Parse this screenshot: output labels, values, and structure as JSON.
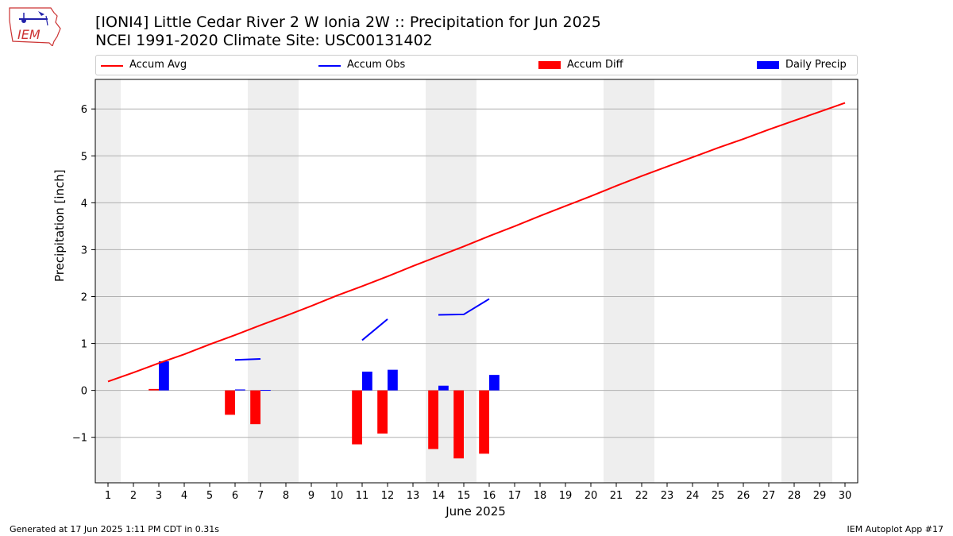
{
  "logo": {
    "text": "IEM"
  },
  "title_line1": "[IONI4] Little Cedar River 2 W Ionia 2W :: Precipitation for Jun 2025",
  "title_line2": "NCEI 1991-2020 Climate Site: USC00131402",
  "legend": {
    "accum_avg": "Accum Avg",
    "accum_obs": "Accum Obs",
    "accum_diff": "Accum Diff",
    "daily_precip": "Daily Precip"
  },
  "footer": {
    "generated": "Generated at 17 Jun 2025 1:11 PM CDT in 0.31s",
    "app": "IEM Autoplot App #17"
  },
  "chart_data": {
    "type": "bar",
    "xlabel": "June 2025",
    "ylabel": "Precipitation [inch]",
    "xlim": [
      0.5,
      30.5
    ],
    "ylim": [
      -1.97,
      6.63
    ],
    "x_ticks": [
      1,
      2,
      3,
      4,
      5,
      6,
      7,
      8,
      9,
      10,
      11,
      12,
      13,
      14,
      15,
      16,
      17,
      18,
      19,
      20,
      21,
      22,
      23,
      24,
      25,
      26,
      27,
      28,
      29,
      30
    ],
    "y_ticks": [
      -1,
      0,
      1,
      2,
      3,
      4,
      5,
      6
    ],
    "y_tick_labels": [
      "−1",
      "0",
      "1",
      "2",
      "3",
      "4",
      "5",
      "6"
    ],
    "grid": "horizontal",
    "legend_placement": "top",
    "weekend_shading_days": [
      [
        0.5,
        1.5
      ],
      [
        6.5,
        8.5
      ],
      [
        13.5,
        15.5
      ],
      [
        20.5,
        22.5
      ],
      [
        27.5,
        29.5
      ]
    ],
    "colors": {
      "accum_avg": "#ff0000",
      "accum_obs": "#0000ff",
      "accum_diff": "#ff0000",
      "daily_precip": "#0000ff",
      "weekend": "#eeeeee",
      "grid": "#b0b0b0"
    },
    "series": [
      {
        "name": "Accum Avg",
        "type": "line",
        "x": [
          1,
          2,
          3,
          4,
          5,
          6,
          7,
          8,
          9,
          10,
          11,
          12,
          13,
          14,
          15,
          16,
          17,
          18,
          19,
          20,
          21,
          22,
          23,
          24,
          25,
          26,
          27,
          28,
          29,
          30
        ],
        "values": [
          0.19,
          0.38,
          0.58,
          0.77,
          0.98,
          1.18,
          1.39,
          1.59,
          1.8,
          2.02,
          2.22,
          2.43,
          2.65,
          2.86,
          3.07,
          3.29,
          3.5,
          3.72,
          3.93,
          4.14,
          4.36,
          4.57,
          4.77,
          4.97,
          5.17,
          5.36,
          5.56,
          5.75,
          5.94,
          6.13
        ]
      },
      {
        "name": "Accum Obs",
        "type": "line",
        "segments": [
          {
            "x": [
              6,
              7
            ],
            "values": [
              0.65,
              0.67
            ]
          },
          {
            "x": [
              11,
              12
            ],
            "values": [
              1.07,
              1.52
            ]
          },
          {
            "x": [
              14,
              15,
              16
            ],
            "values": [
              1.61,
              1.62,
              1.95
            ]
          }
        ]
      },
      {
        "name": "Accum Diff",
        "type": "bar",
        "x": [
          3,
          6,
          7,
          11,
          12,
          14,
          15,
          16
        ],
        "values": [
          0.03,
          -0.52,
          -0.72,
          -1.15,
          -0.92,
          -1.25,
          -1.45,
          -1.35
        ]
      },
      {
        "name": "Daily Precip",
        "type": "bar",
        "x": [
          3,
          6,
          7,
          11,
          12,
          14,
          16
        ],
        "values": [
          0.62,
          0.02,
          0.01,
          0.4,
          0.44,
          0.1,
          0.33
        ]
      }
    ]
  }
}
